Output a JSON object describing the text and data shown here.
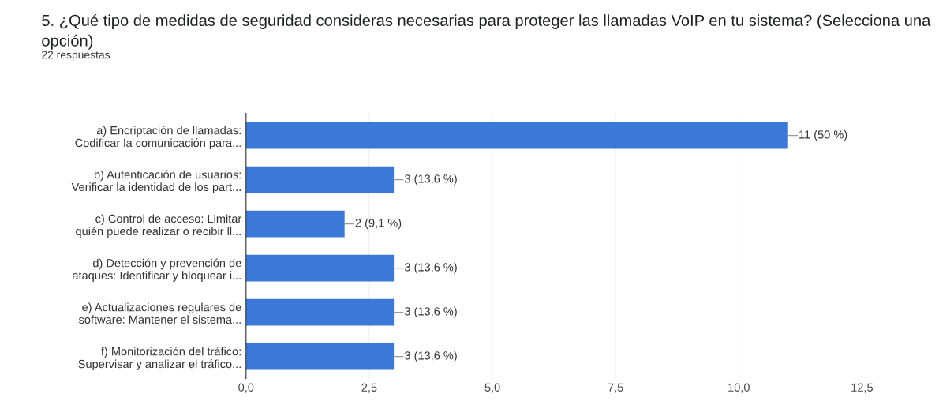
{
  "chart_data": {
    "type": "bar",
    "orientation": "horizontal",
    "title": "5. ¿Qué tipo de medidas de seguridad consideras necesarias para proteger las llamadas VoIP en tu sistema? (Selecciona una opción)",
    "subtitle": "22 respuestas",
    "categories": [
      "a) Encriptación de llamadas:\nCodificar la comunicación para...",
      "b) Autenticación de usuarios:\nVerificar la identidad de los part...",
      "c) Control de acceso: Limitar\nquién puede realizar o recibir ll...",
      "d) Detección y prevención de\nataques: Identificar y bloquear i...",
      "e) Actualizaciones regulares de\nsoftware: Mantener el sistema...",
      "f) Monitorización del tráfico:\nSupervisar y analizar el tráfico..."
    ],
    "values": [
      11,
      3,
      2,
      3,
      3,
      3
    ],
    "value_labels": [
      "11 (50 %)",
      "3 (13,6 %)",
      "2 (9,1 %)",
      "3 (13,6 %)",
      "3 (13,6 %)",
      "3 (13,6 %)"
    ],
    "color": "#3c78d8",
    "xlim": [
      0,
      12.5
    ],
    "xticks": [
      {
        "value": 0,
        "label": "0,0"
      },
      {
        "value": 2.5,
        "label": "2,5"
      },
      {
        "value": 5,
        "label": "5,0"
      },
      {
        "value": 7.5,
        "label": "7,5"
      },
      {
        "value": 10,
        "label": "10,0"
      },
      {
        "value": 12.5,
        "label": "12,5"
      }
    ],
    "grid": "x",
    "legend": false
  }
}
